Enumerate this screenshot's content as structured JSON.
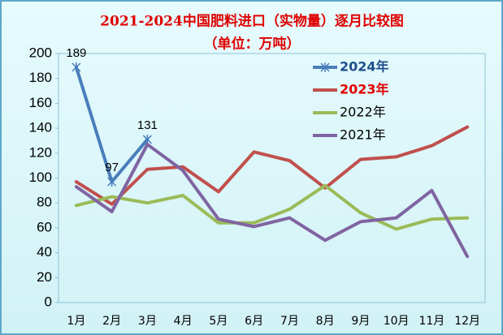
{
  "chart_data": {
    "type": "line",
    "title": "2021-2024中国肥料进口（实物量）逐月比较图",
    "subtitle": "（单位：万吨）",
    "title_color": "#e00000",
    "categories": [
      "1月",
      "2月",
      "3月",
      "4月",
      "5月",
      "6月",
      "7月",
      "8月",
      "9月",
      "10月",
      "11月",
      "12月"
    ],
    "series": [
      {
        "name": "2024年",
        "color": "#4a7ebb",
        "label_color": "#1f4e8c",
        "marker": "star",
        "values": [
          189,
          97,
          131,
          null,
          null,
          null,
          null,
          null,
          null,
          null,
          null,
          null
        ],
        "show_value_labels": true
      },
      {
        "name": "2023年",
        "color": "#c0504d",
        "label_color": "#e00000",
        "values": [
          97,
          79,
          107,
          109,
          89,
          121,
          114,
          92,
          115,
          117,
          126,
          141
        ]
      },
      {
        "name": "2022年",
        "color": "#9bbb59",
        "label_color": "#000000",
        "values": [
          78,
          85,
          80,
          86,
          64,
          64,
          75,
          94,
          72,
          59,
          67,
          68
        ]
      },
      {
        "name": "2021年",
        "color": "#8064a2",
        "label_color": "#000000",
        "values": [
          93,
          73,
          127,
          106,
          67,
          61,
          68,
          50,
          65,
          68,
          90,
          37
        ]
      }
    ],
    "ylim": [
      0,
      200
    ],
    "yticks": [
      0,
      20,
      40,
      60,
      80,
      100,
      120,
      140,
      160,
      180,
      200
    ],
    "grid": false,
    "legend": "upper-right"
  }
}
